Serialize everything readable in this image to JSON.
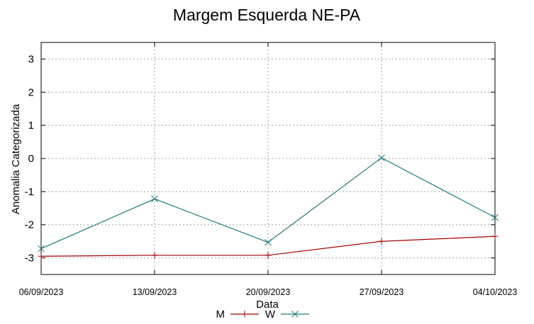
{
  "chart_data": {
    "type": "line",
    "title": "Margem Esquerda NE-PA",
    "xlabel": "Data",
    "ylabel": "Anomalia Categorizada",
    "categories": [
      "06/09/2023",
      "13/09/2023",
      "20/09/2023",
      "27/09/2023",
      "04/10/2023"
    ],
    "yticks": [
      3,
      2,
      1,
      0,
      -1,
      -2,
      -3
    ],
    "ylim": [
      -3.5,
      3.5
    ],
    "grid": true,
    "legend_position": "bottom-center",
    "series": [
      {
        "name": "M",
        "color": "#a00000",
        "marker": "plus",
        "values": [
          -2.95,
          -2.92,
          -2.92,
          -2.5,
          -2.35
        ]
      },
      {
        "name": "W",
        "color": "#1f7a7a",
        "marker": "cross",
        "values": [
          -2.72,
          -1.22,
          -2.53,
          0.02,
          -1.78
        ]
      }
    ]
  }
}
